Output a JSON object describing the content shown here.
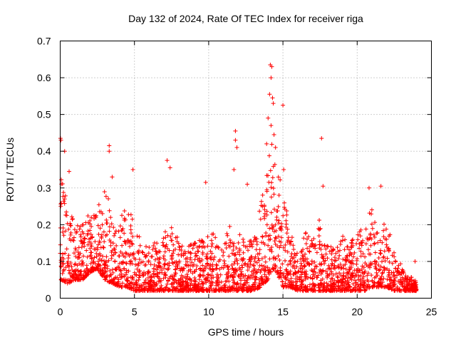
{
  "chart_data": {
    "type": "scatter",
    "title": "Day 132 of 2024, Rate Of TEC Index for receiver riga",
    "xlabel": "GPS time / hours",
    "ylabel": "ROTI / TECUs",
    "xlim": [
      0,
      25
    ],
    "ylim": [
      0,
      0.7
    ],
    "x_ticks": [
      0,
      5,
      10,
      15,
      20,
      25
    ],
    "y_ticks": [
      0,
      0.1,
      0.2,
      0.3,
      0.4,
      0.5,
      0.6,
      0.7
    ],
    "x_tick_labels": [
      "0",
      "5",
      "10",
      "15",
      "20",
      "25"
    ],
    "y_tick_labels": [
      "0",
      "0.1",
      "0.2",
      "0.3",
      "0.4",
      "0.5",
      "0.6",
      "0.7"
    ],
    "grid": true,
    "marker": "+",
    "marker_color": "#ff0000",
    "series": [
      {
        "name": "ROTI",
        "envelope": [
          [
            0.0,
            0.05,
            0.34
          ],
          [
            0.5,
            0.04,
            0.26
          ],
          [
            1.0,
            0.05,
            0.2
          ],
          [
            1.5,
            0.05,
            0.2
          ],
          [
            2.0,
            0.07,
            0.24
          ],
          [
            2.5,
            0.08,
            0.25
          ],
          [
            3.0,
            0.05,
            0.3
          ],
          [
            3.5,
            0.04,
            0.24
          ],
          [
            4.0,
            0.03,
            0.22
          ],
          [
            4.5,
            0.03,
            0.28
          ],
          [
            5.0,
            0.02,
            0.22
          ],
          [
            5.5,
            0.02,
            0.15
          ],
          [
            6.0,
            0.02,
            0.14
          ],
          [
            6.5,
            0.02,
            0.16
          ],
          [
            7.0,
            0.02,
            0.18
          ],
          [
            7.5,
            0.02,
            0.2
          ],
          [
            8.0,
            0.02,
            0.16
          ],
          [
            8.5,
            0.02,
            0.14
          ],
          [
            9.0,
            0.02,
            0.15
          ],
          [
            9.5,
            0.02,
            0.16
          ],
          [
            10.0,
            0.02,
            0.17
          ],
          [
            10.5,
            0.02,
            0.18
          ],
          [
            11.0,
            0.02,
            0.18
          ],
          [
            11.5,
            0.02,
            0.2
          ],
          [
            12.0,
            0.02,
            0.18
          ],
          [
            12.5,
            0.02,
            0.16
          ],
          [
            13.0,
            0.02,
            0.16
          ],
          [
            13.5,
            0.03,
            0.26
          ],
          [
            14.0,
            0.05,
            0.4
          ],
          [
            14.3,
            0.08,
            0.45
          ],
          [
            14.6,
            0.07,
            0.38
          ],
          [
            15.0,
            0.03,
            0.3
          ],
          [
            15.5,
            0.03,
            0.18
          ],
          [
            16.0,
            0.02,
            0.12
          ],
          [
            16.5,
            0.02,
            0.18
          ],
          [
            17.0,
            0.02,
            0.16
          ],
          [
            17.5,
            0.02,
            0.22
          ],
          [
            18.0,
            0.02,
            0.14
          ],
          [
            18.5,
            0.02,
            0.16
          ],
          [
            19.0,
            0.02,
            0.18
          ],
          [
            19.5,
            0.02,
            0.14
          ],
          [
            20.0,
            0.02,
            0.2
          ],
          [
            20.5,
            0.02,
            0.18
          ],
          [
            21.0,
            0.03,
            0.29
          ],
          [
            21.5,
            0.03,
            0.18
          ],
          [
            22.0,
            0.03,
            0.22
          ],
          [
            22.5,
            0.02,
            0.12
          ],
          [
            23.0,
            0.02,
            0.09
          ],
          [
            23.5,
            0.02,
            0.06
          ],
          [
            24.0,
            0.02,
            0.05
          ]
        ],
        "outliers": [
          [
            0.02,
            0.435
          ],
          [
            0.05,
            0.43
          ],
          [
            0.3,
            0.4
          ],
          [
            0.6,
            0.345
          ],
          [
            3.3,
            0.415
          ],
          [
            3.3,
            0.4
          ],
          [
            3.5,
            0.33
          ],
          [
            4.9,
            0.35
          ],
          [
            7.2,
            0.375
          ],
          [
            7.4,
            0.355
          ],
          [
            9.8,
            0.315
          ],
          [
            11.8,
            0.455
          ],
          [
            11.8,
            0.43
          ],
          [
            11.9,
            0.41
          ],
          [
            11.7,
            0.35
          ],
          [
            12.6,
            0.31
          ],
          [
            13.9,
            0.42
          ],
          [
            14.0,
            0.49
          ],
          [
            14.1,
            0.555
          ],
          [
            14.15,
            0.635
          ],
          [
            14.25,
            0.63
          ],
          [
            14.2,
            0.6
          ],
          [
            14.3,
            0.545
          ],
          [
            14.35,
            0.53
          ],
          [
            14.2,
            0.47
          ],
          [
            14.4,
            0.445
          ],
          [
            14.5,
            0.41
          ],
          [
            15.0,
            0.525
          ],
          [
            15.05,
            0.35
          ],
          [
            17.6,
            0.435
          ],
          [
            17.7,
            0.305
          ],
          [
            20.8,
            0.3
          ],
          [
            21.6,
            0.305
          ],
          [
            23.9,
            0.1
          ]
        ]
      }
    ]
  }
}
